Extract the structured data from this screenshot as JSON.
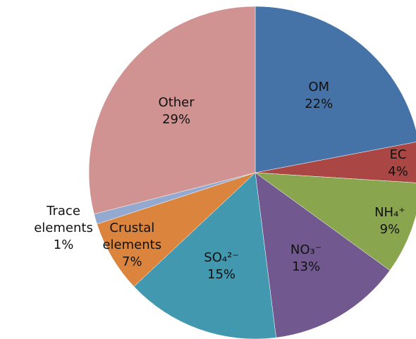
{
  "chart_data": {
    "type": "pie",
    "categories": [
      "OM",
      "EC",
      "NH₄⁺",
      "NO₃⁻",
      "SO₄²⁻",
      "Crustal elements",
      "Trace elements",
      "Other"
    ],
    "values": [
      22,
      4,
      9,
      13,
      15,
      7,
      1,
      29
    ],
    "value_labels": [
      "22%",
      "4%",
      "9%",
      "13%",
      "15%",
      "7%",
      "1%",
      "29%"
    ],
    "colors": [
      "#4572A7",
      "#AA4643",
      "#89A54E",
      "#71588F",
      "#4198AF",
      "#DB843D",
      "#93A9CF",
      "#D19392"
    ]
  }
}
